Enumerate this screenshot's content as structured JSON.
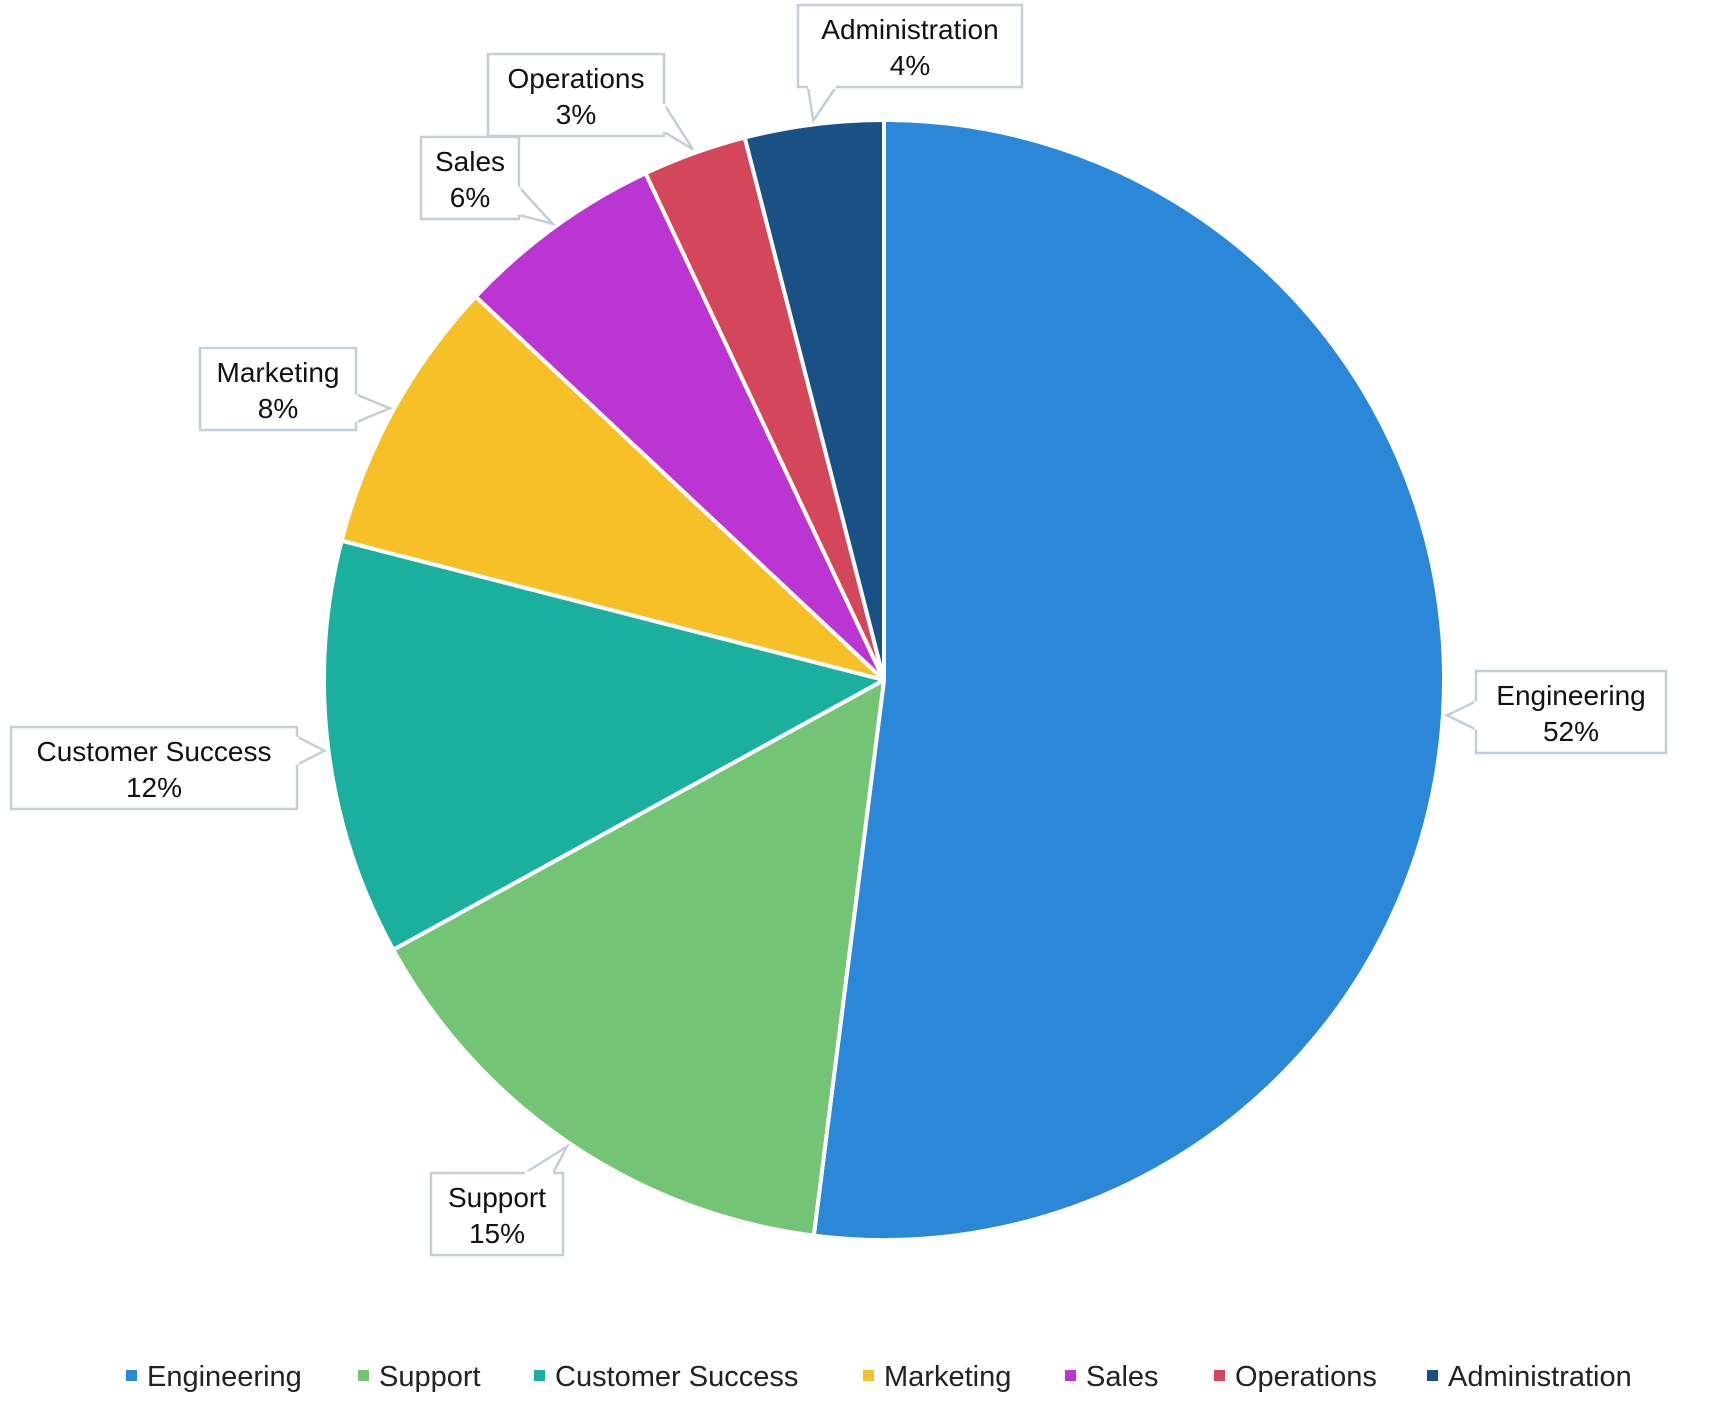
{
  "chart_data": {
    "type": "pie",
    "title": "",
    "slices": [
      {
        "label": "Engineering",
        "value": 52,
        "value_label": "52%",
        "color": "#2b88d8"
      },
      {
        "label": "Support",
        "value": 15,
        "value_label": "15%",
        "color": "#74c476"
      },
      {
        "label": "Customer Success",
        "value": 12,
        "value_label": "12%",
        "color": "#1baf9e"
      },
      {
        "label": "Marketing",
        "value": 8,
        "value_label": "8%",
        "color": "#f6c026"
      },
      {
        "label": "Sales",
        "value": 6,
        "value_label": "6%",
        "color": "#bb35d3"
      },
      {
        "label": "Operations",
        "value": 3,
        "value_label": "3%",
        "color": "#d4465a"
      },
      {
        "label": "Administration",
        "value": 4,
        "value_label": "4%",
        "color": "#1a5185"
      }
    ],
    "start_angle": "12 o'clock",
    "direction": "clockwise",
    "legend_position": "bottom"
  }
}
